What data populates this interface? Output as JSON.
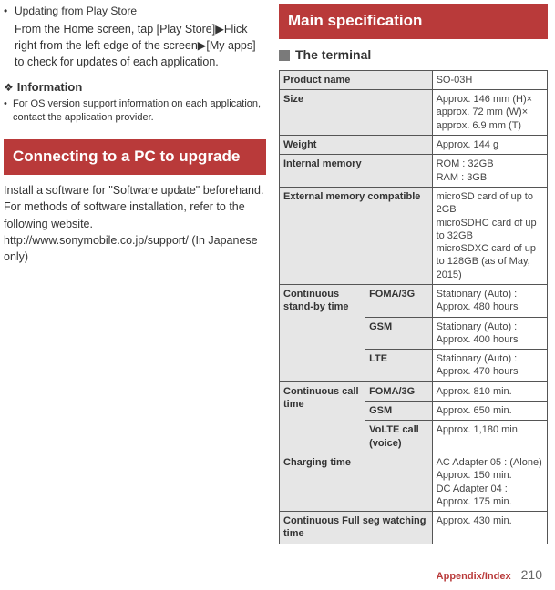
{
  "left": {
    "update_title": "Updating from Play Store",
    "update_body": "From the Home screen, tap [Play Store]▶Flick right from the left edge of the screen▶[My apps] to check for updates of each application.",
    "info_heading": "Information",
    "info_body": "For OS version support information on each application, contact the application provider.",
    "banner": "Connecting to a PC to upgrade",
    "install_body": "Install a software for \"Software update\" beforehand.\nFor methods of software installation, refer to the following website.\nhttp://www.sonymobile.co.jp/support/ (In Japanese only)"
  },
  "right": {
    "banner": "Main specification",
    "section_title": "The terminal",
    "rows": {
      "product_name": {
        "label": "Product name",
        "value": "SO-03H"
      },
      "size": {
        "label": "Size",
        "value": "Approx. 146 mm (H)×\napprox. 72 mm (W)×\napprox. 6.9 mm (T)"
      },
      "weight": {
        "label": "Weight",
        "value": "Approx. 144 g"
      },
      "internal_memory": {
        "label": "Internal memory",
        "value": "ROM : 32GB\nRAM : 3GB"
      },
      "external_memory": {
        "label": "External memory compatible",
        "value": "microSD card of up to 2GB\nmicroSDHC card of up to 32GB\nmicroSDXC card of up to 128GB (as of May, 2015)"
      },
      "standby": {
        "label": "Continuous stand-by time",
        "foma": {
          "label": "FOMA/3G",
          "value": "Stationary (Auto) : Approx. 480 hours"
        },
        "gsm": {
          "label": "GSM",
          "value": "Stationary (Auto) : Approx. 400 hours"
        },
        "lte": {
          "label": "LTE",
          "value": "Stationary (Auto) : Approx. 470 hours"
        }
      },
      "call": {
        "label": "Continuous call time",
        "foma": {
          "label": "FOMA/3G",
          "value": "Approx. 810 min."
        },
        "gsm": {
          "label": "GSM",
          "value": "Approx. 650 min."
        },
        "volte": {
          "label": "VoLTE call (voice)",
          "value": "Approx. 1,180 min."
        }
      },
      "charging": {
        "label": "Charging time",
        "value": "AC Adapter 05 : (Alone) Approx. 150 min.\nDC Adapter 04 : Approx. 175 min."
      },
      "fullseg": {
        "label": "Continuous Full seg watching time",
        "value": "Approx. 430 min."
      }
    }
  },
  "footer": {
    "label": "Appendix/Index",
    "page": "210"
  }
}
